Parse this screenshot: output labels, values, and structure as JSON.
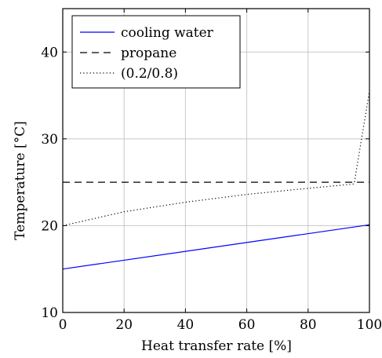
{
  "chart_data": {
    "type": "line",
    "title": "",
    "xlabel": "Heat transfer rate [%]",
    "ylabel": "Temperature [°C]",
    "xlim": [
      0,
      100
    ],
    "ylim": [
      10,
      45
    ],
    "x_ticks": [
      0,
      20,
      40,
      60,
      80,
      100
    ],
    "y_ticks": [
      10,
      20,
      30,
      40
    ],
    "x_tick_labels": [
      "0",
      "20",
      "40",
      "60",
      "80",
      "100"
    ],
    "y_tick_labels": [
      "10",
      "20",
      "30",
      "40"
    ],
    "grid": true,
    "legend_position": "top-left",
    "series": [
      {
        "name": "cooling water",
        "style": "solid",
        "color": "#0000ff",
        "x": [
          0,
          100
        ],
        "y": [
          15.0,
          20.1
        ]
      },
      {
        "name": "propane",
        "style": "dashed",
        "color": "#000000",
        "x": [
          0,
          100
        ],
        "y": [
          25.0,
          25.0
        ]
      },
      {
        "name": "(0.2/0.8)",
        "style": "dotted",
        "color": "#000000",
        "x": [
          0,
          20,
          40,
          60,
          80,
          95,
          100
        ],
        "y": [
          20.0,
          21.6,
          22.7,
          23.6,
          24.3,
          24.8,
          35.5
        ]
      }
    ]
  }
}
